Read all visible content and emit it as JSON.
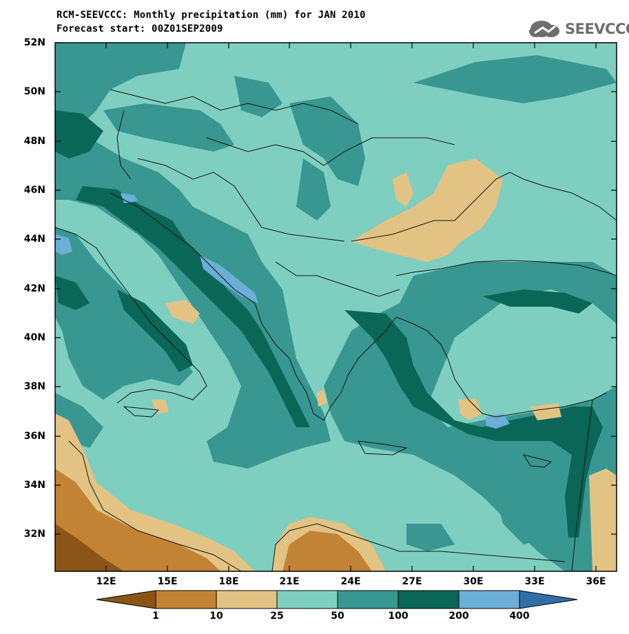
{
  "header": {
    "title_line1": "RCM-SEEVCCC: Monthly precipitation (mm) for JAN 2010",
    "title_line2": "Forecast start: 00Z01SEP2009",
    "logo_text": "SEEVCCC"
  },
  "axes": {
    "lat_labels": [
      "52N",
      "50N",
      "48N",
      "46N",
      "44N",
      "42N",
      "40N",
      "38N",
      "36N",
      "34N",
      "32N"
    ],
    "lat_values": [
      52,
      50,
      48,
      46,
      44,
      42,
      40,
      38,
      36,
      34,
      32
    ],
    "lon_labels": [
      "12E",
      "15E",
      "18E",
      "21E",
      "24E",
      "27E",
      "30E",
      "33E",
      "36E"
    ],
    "lon_values": [
      12,
      15,
      18,
      21,
      24,
      27,
      30,
      33,
      36
    ],
    "lon_range": [
      9.5,
      37
    ],
    "lat_range": [
      30.5,
      52
    ]
  },
  "colorbar": {
    "labels": [
      "1",
      "10",
      "25",
      "50",
      "100",
      "200",
      "400"
    ],
    "colors": [
      "#8c5518",
      "#c38335",
      "#e3c384",
      "#7fcfc0",
      "#389790",
      "#0a6656",
      "#6baed6",
      "#2f6fa8"
    ]
  },
  "map": {
    "units": "mm",
    "background_class": "25-50",
    "colors": {
      "dry1": "#8c5518",
      "dry2": "#c38335",
      "dry3": "#e3c384",
      "mid": "#7fcfc0",
      "wet1": "#389790",
      "wet2": "#0a6656",
      "wet3": "#6baed6"
    }
  }
}
